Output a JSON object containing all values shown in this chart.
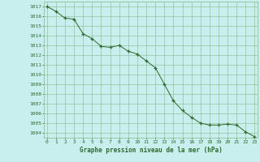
{
  "x": [
    0,
    1,
    2,
    3,
    4,
    5,
    6,
    7,
    8,
    9,
    10,
    11,
    12,
    13,
    14,
    15,
    16,
    17,
    18,
    19,
    20,
    21,
    22,
    23
  ],
  "y": [
    1017.0,
    1016.5,
    1015.8,
    1015.7,
    1014.2,
    1013.7,
    1012.9,
    1012.8,
    1013.0,
    1012.4,
    1012.1,
    1011.4,
    1010.7,
    1009.0,
    1007.3,
    1006.3,
    1005.6,
    1005.0,
    1004.8,
    1004.8,
    1004.9,
    1004.8,
    1004.1,
    1003.6
  ],
  "line_color": "#2d6a2d",
  "marker": "+",
  "bg_color": "#c8eeee",
  "grid_color": "#8ab88a",
  "axis_label_color": "#2d6a2d",
  "tick_color": "#2d6a2d",
  "xlabel": "Graphe pression niveau de la mer (hPa)",
  "ylim_min": 1003.5,
  "ylim_max": 1017.5,
  "xlim_min": -0.3,
  "xlim_max": 23.3
}
